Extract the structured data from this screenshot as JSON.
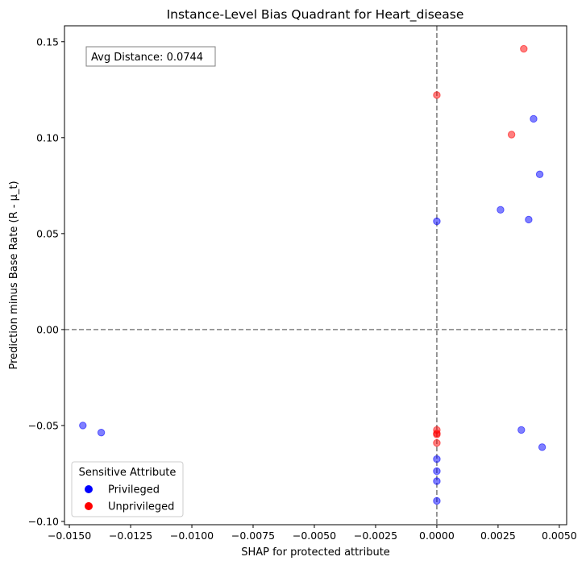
{
  "chart_data": {
    "type": "scatter",
    "title": "Instance-Level Bias Quadrant for Heart_disease",
    "xlabel": "SHAP for protected attribute",
    "ylabel": "Prediction minus Base Rate (R - μ_t)",
    "xlim": [
      -0.0152,
      0.0053
    ],
    "ylim": [
      -0.1017,
      0.1583
    ],
    "x_ticks": [
      -0.015,
      -0.0125,
      -0.01,
      -0.0075,
      -0.005,
      -0.0025,
      0.0,
      0.0025,
      0.005
    ],
    "x_tick_labels": [
      "−0.0150",
      "−0.0125",
      "−0.0100",
      "−0.0075",
      "−0.0050",
      "−0.0025",
      "0.0000",
      "0.0025",
      "0.0050"
    ],
    "y_ticks": [
      -0.1,
      -0.05,
      0.0,
      0.05,
      0.1,
      0.15
    ],
    "y_tick_labels": [
      "−0.10",
      "−0.05",
      "0.00",
      "0.05",
      "0.10",
      "0.15"
    ],
    "reference_lines": {
      "x": 0.0,
      "y": 0.0,
      "style": "dashed",
      "color": "#808080"
    },
    "annotation": "Avg Distance: 0.0744",
    "legend": {
      "title": "Sensitive Attribute",
      "placement": "lower-left"
    },
    "series": [
      {
        "name": "Privileged",
        "color": "#0000ff",
        "points": [
          {
            "x": 0.00395,
            "y": 0.1098
          },
          {
            "x": 0.0042,
            "y": 0.0809
          },
          {
            "x": 0.0026,
            "y": 0.0624
          },
          {
            "x": 0.00375,
            "y": 0.0573
          },
          {
            "x": 0.0,
            "y": 0.0564
          },
          {
            "x": -0.01445,
            "y": -0.05
          },
          {
            "x": -0.0137,
            "y": -0.0537
          },
          {
            "x": 0.00345,
            "y": -0.0523
          },
          {
            "x": 0.0043,
            "y": -0.0613
          },
          {
            "x": 0.0,
            "y": -0.0675
          },
          {
            "x": 0.0,
            "y": -0.0738
          },
          {
            "x": 0.0,
            "y": -0.079
          },
          {
            "x": 0.0,
            "y": -0.0893
          }
        ]
      },
      {
        "name": "Unprivileged",
        "color": "#ff0000",
        "points": [
          {
            "x": 0.00355,
            "y": 0.1463
          },
          {
            "x": 0.0,
            "y": 0.1222
          },
          {
            "x": 0.00305,
            "y": 0.1016
          },
          {
            "x": 0.0,
            "y": -0.0523
          },
          {
            "x": 0.0,
            "y": -0.0541
          },
          {
            "x": 0.0,
            "y": -0.0547
          },
          {
            "x": 0.0,
            "y": -0.0591
          }
        ]
      }
    ]
  }
}
